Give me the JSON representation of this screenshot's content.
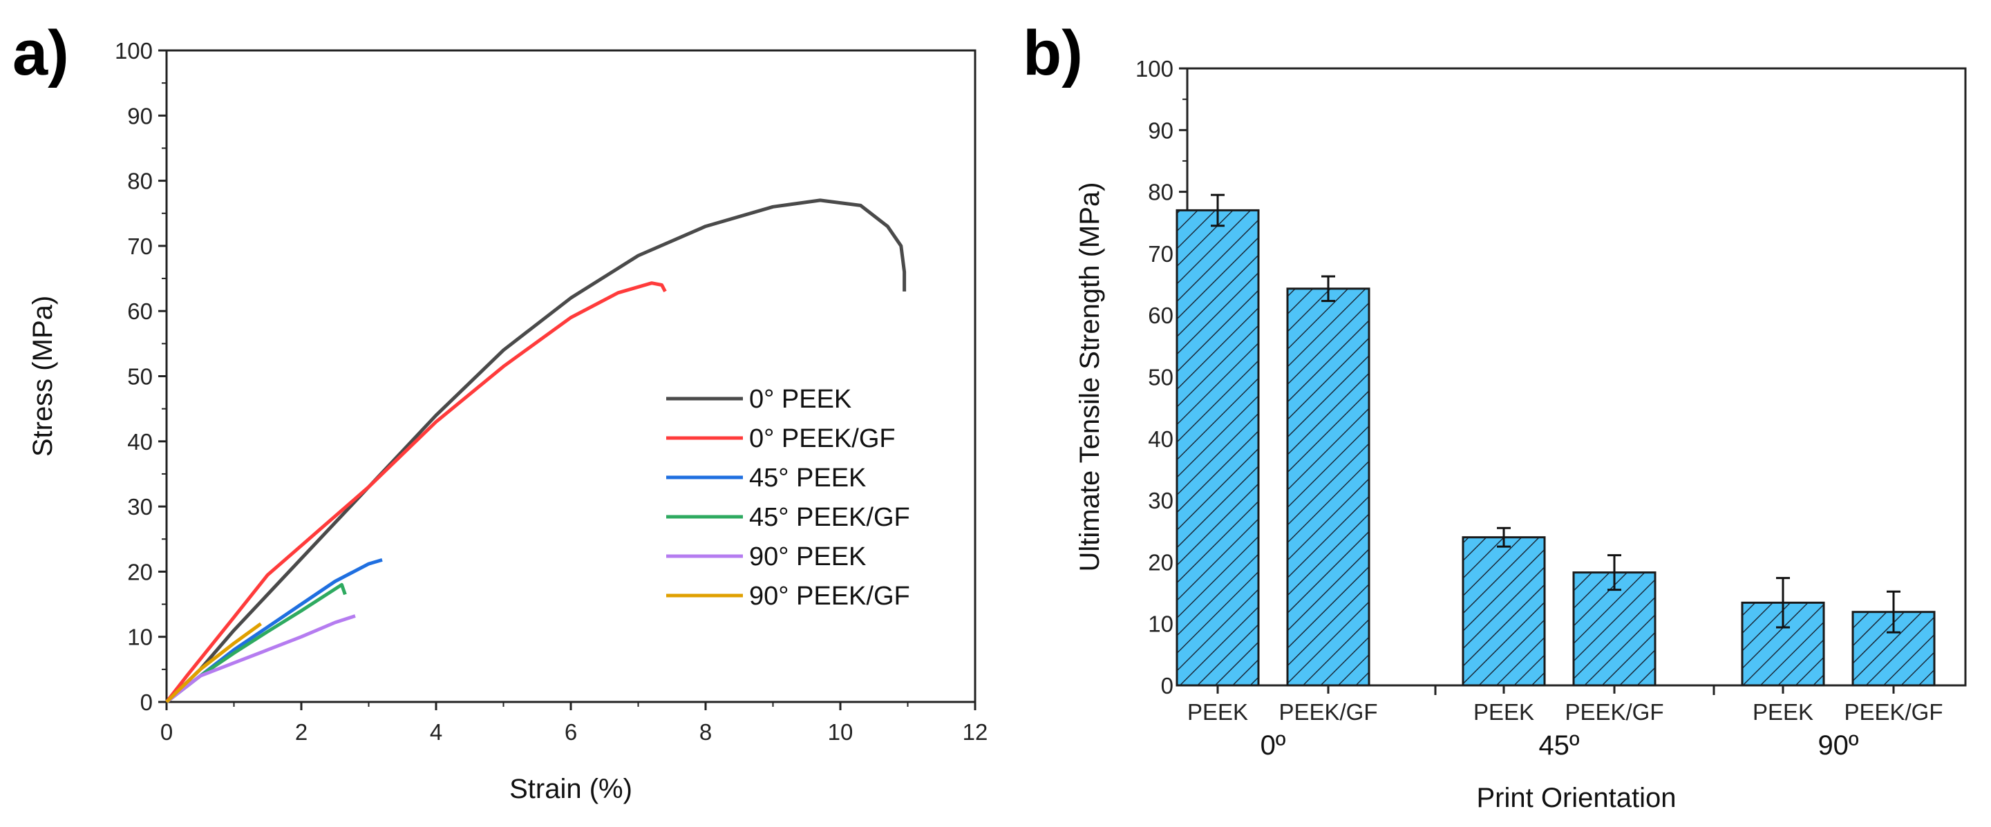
{
  "chart_data": [
    {
      "type": "line",
      "panel_label": "a)",
      "xlabel": "Strain (%)",
      "ylabel": "Stress (MPa)",
      "xlim": [
        0,
        12
      ],
      "ylim": [
        0,
        100
      ],
      "xticks": [
        0,
        2,
        4,
        6,
        8,
        10,
        12
      ],
      "yticks": [
        0,
        10,
        20,
        30,
        40,
        50,
        60,
        70,
        80,
        90,
        100
      ],
      "legend": "center-right",
      "series": [
        {
          "name": "0° PEEK",
          "color": "#4a4a4a",
          "points": [
            [
              0,
              0
            ],
            [
              0.5,
              5
            ],
            [
              1,
              11
            ],
            [
              2,
              22
            ],
            [
              3,
              33
            ],
            [
              3.5,
              38.5
            ],
            [
              4,
              44
            ],
            [
              5,
              54
            ],
            [
              6,
              62
            ],
            [
              7,
              68.5
            ],
            [
              8,
              73
            ],
            [
              9,
              76
            ],
            [
              9.7,
              77
            ],
            [
              10.3,
              76.2
            ],
            [
              10.7,
              73
            ],
            [
              10.9,
              70
            ],
            [
              10.95,
              66
            ],
            [
              10.95,
              63
            ]
          ]
        },
        {
          "name": "0° PEEK/GF",
          "color": "#ff3b3b",
          "points": [
            [
              0,
              0
            ],
            [
              0.3,
              4
            ],
            [
              1,
              13
            ],
            [
              1.5,
              19.5
            ],
            [
              2,
              24
            ],
            [
              3,
              33
            ],
            [
              4,
              43
            ],
            [
              5,
              51.5
            ],
            [
              6,
              59
            ],
            [
              6.7,
              62.8
            ],
            [
              7.2,
              64.3
            ],
            [
              7.35,
              64
            ],
            [
              7.4,
              63
            ]
          ]
        },
        {
          "name": "45° PEEK",
          "color": "#1f6fe0",
          "points": [
            [
              0,
              0
            ],
            [
              0.5,
              4
            ],
            [
              1,
              8
            ],
            [
              1.5,
              11.5
            ],
            [
              2,
              15
            ],
            [
              2.5,
              18.5
            ],
            [
              3,
              21.2
            ],
            [
              3.2,
              21.8
            ]
          ]
        },
        {
          "name": "45° PEEK/GF",
          "color": "#2eaa60",
          "points": [
            [
              0,
              0
            ],
            [
              0.5,
              4
            ],
            [
              1,
              7.5
            ],
            [
              1.5,
              10.8
            ],
            [
              2,
              14
            ],
            [
              2.6,
              18
            ],
            [
              2.65,
              16.5
            ]
          ]
        },
        {
          "name": "90° PEEK",
          "color": "#b57cf0",
          "points": [
            [
              0,
              0
            ],
            [
              0.5,
              4
            ],
            [
              1,
              6
            ],
            [
              1.5,
              8
            ],
            [
              2,
              10
            ],
            [
              2.5,
              12.2
            ],
            [
              2.8,
              13.2
            ]
          ]
        },
        {
          "name": "90° PEEK/GF",
          "color": "#e0a000",
          "points": [
            [
              0,
              0
            ],
            [
              0.5,
              5
            ],
            [
              1,
              9
            ],
            [
              1.4,
              12
            ]
          ]
        }
      ]
    },
    {
      "type": "bar",
      "panel_label": "b)",
      "xlabel": "Print Orientation",
      "ylabel": "Ultimate Tensile Strength (MPa)",
      "ylim": [
        0,
        100
      ],
      "yticks": [
        0,
        10,
        20,
        30,
        40,
        50,
        60,
        70,
        80,
        90,
        100
      ],
      "bar_color": "#4fc3f7",
      "groups": [
        {
          "label": "0º",
          "bars": [
            {
              "label": "PEEK",
              "value": 77,
              "error": 2.5
            },
            {
              "label": "PEEK/GF",
              "value": 64.3,
              "error": 2.0
            }
          ]
        },
        {
          "label": "45º",
          "bars": [
            {
              "label": "PEEK",
              "value": 24,
              "error": 1.5
            },
            {
              "label": "PEEK/GF",
              "value": 18.3,
              "error": 2.8
            }
          ]
        },
        {
          "label": "90º",
          "bars": [
            {
              "label": "PEEK",
              "value": 13.4,
              "error": 4.0
            },
            {
              "label": "PEEK/GF",
              "value": 11.9,
              "error": 3.3
            }
          ]
        }
      ]
    }
  ]
}
